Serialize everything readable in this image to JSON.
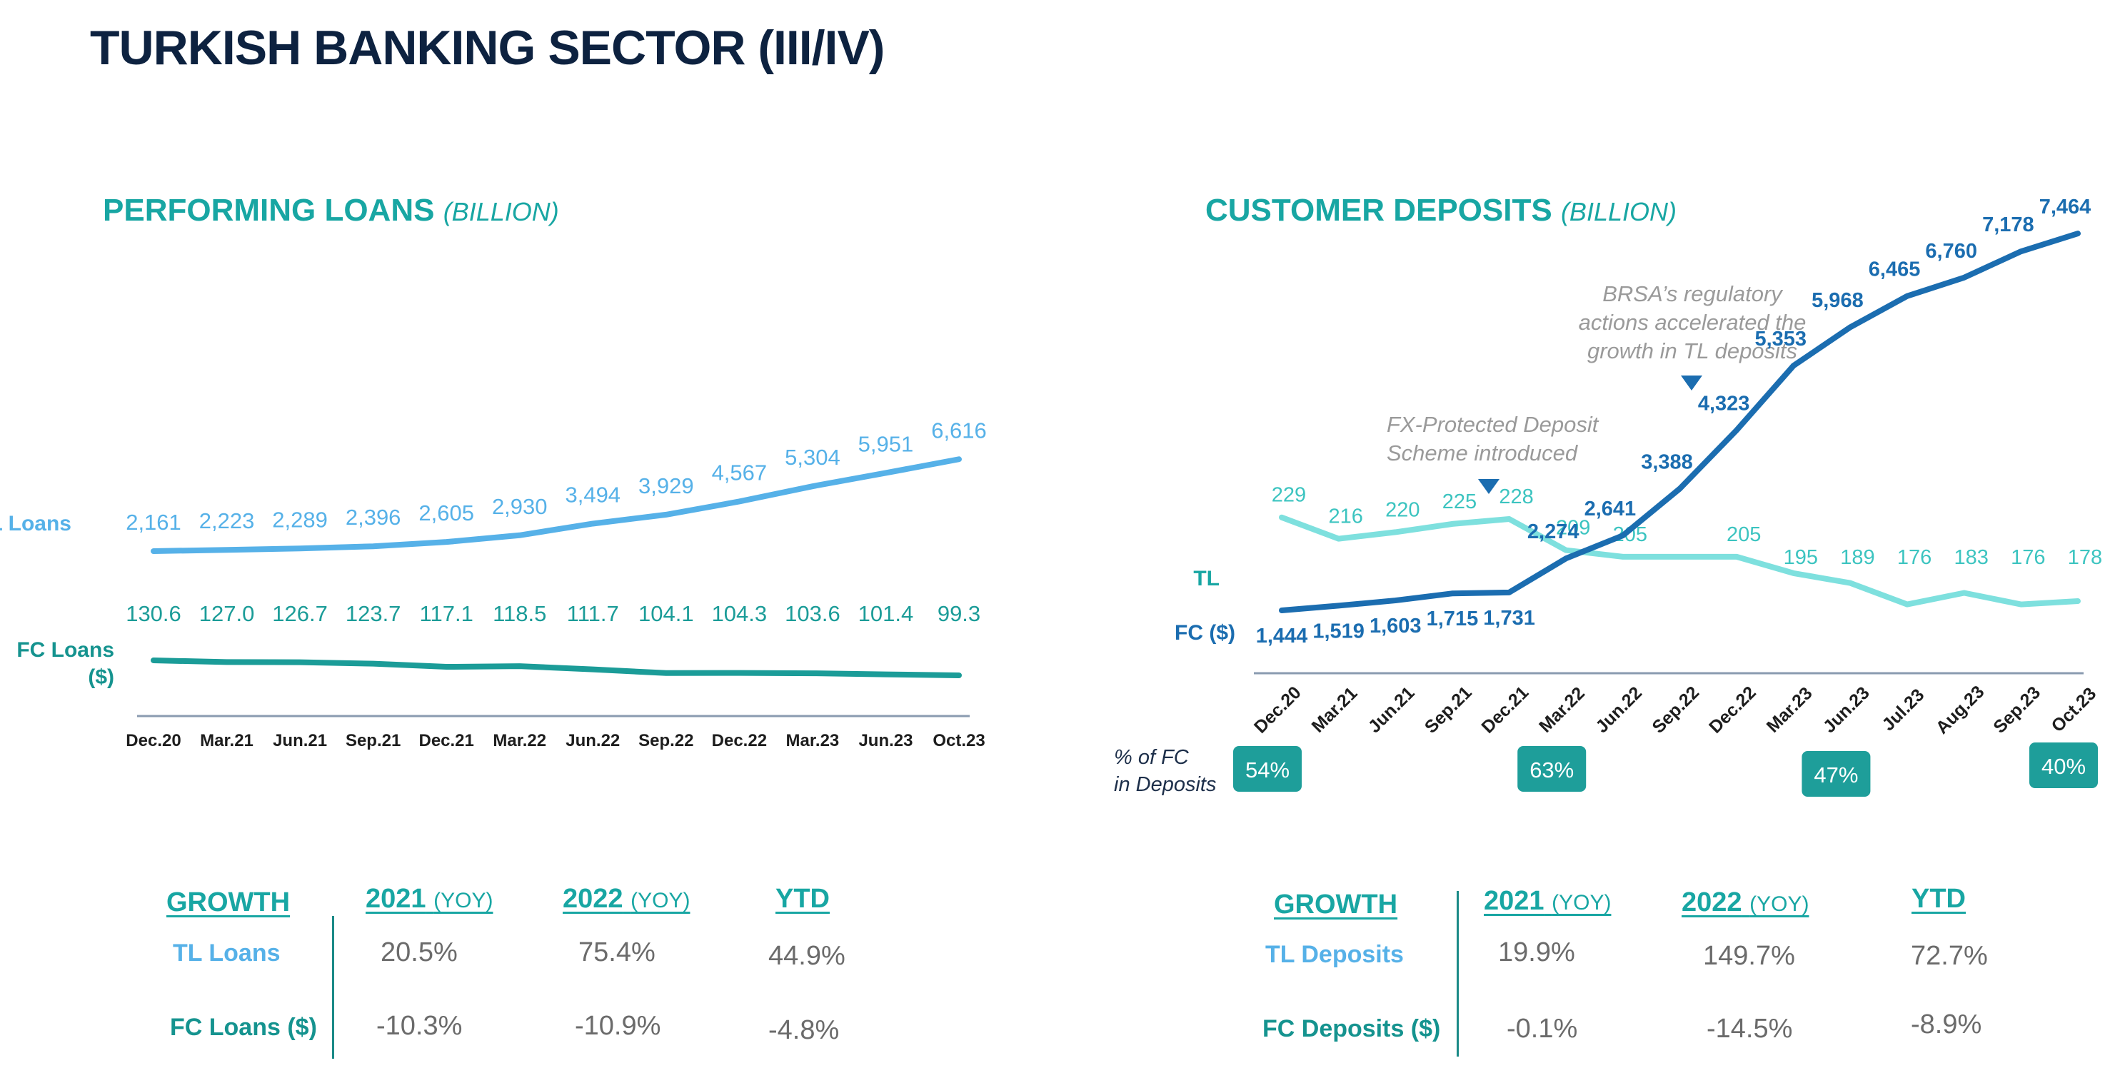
{
  "page_title": "TURKISH BANKING SECTOR (III/IV)",
  "colors": {
    "navy": "#0d2240",
    "teal": "#18a6a3",
    "tl_loans": "#56b1e8",
    "fc_loans": "#1b9c98",
    "tl_deposits": "#1b6db0",
    "fc_deposits": "#7ee0de",
    "annotation": "#9a9a9a"
  },
  "icons": [
    "triangle-marker-icon"
  ],
  "loans": {
    "title": "PERFORMING LOANS",
    "unit": "(BILLION)",
    "series_labels": {
      "tl": "TL Loans",
      "fc_line1": "FC Loans",
      "fc_line2": "($)"
    },
    "growth_table": {
      "header": {
        "label": "GROWTH",
        "c1": "2021",
        "c1_sub": "(YOY)",
        "c2": "2022",
        "c2_sub": "(YOY)",
        "c3": "YTD"
      },
      "rows": [
        {
          "label": "TL Loans",
          "v1": "20.5%",
          "v2": "75.4%",
          "v3": "44.9%"
        },
        {
          "label": "FC Loans ($)",
          "v1": "-10.3%",
          "v2": "-10.9%",
          "v3": "-4.8%"
        }
      ]
    }
  },
  "deposits": {
    "title": "CUSTOMER DEPOSITS",
    "unit": "(BILLION)",
    "series_labels": {
      "tl": "TL",
      "fc": "FC ($)"
    },
    "annotations": [
      {
        "line1": "BRSA’s regulatory",
        "line2": "actions accelerated the",
        "line3": "growth in TL deposits"
      },
      {
        "line1": "FX-Protected Deposit",
        "line2": "Scheme introduced"
      }
    ],
    "fc_share_label": {
      "line1": "% of FC",
      "line2": "in Deposits"
    },
    "fc_share": [
      {
        "category": "Dec.20",
        "value": "54%"
      },
      {
        "category": "Mar.22",
        "value": "63%"
      },
      {
        "category": "Jun.23",
        "value": "47%"
      },
      {
        "category": "Oct.23",
        "value": "40%"
      }
    ],
    "growth_table": {
      "header": {
        "label": "GROWTH",
        "c1": "2021",
        "c1_sub": "(YOY)",
        "c2": "2022",
        "c2_sub": "(YOY)",
        "c3": "YTD"
      },
      "rows": [
        {
          "label": "TL Deposits",
          "v1": "19.9%",
          "v2": "149.7%",
          "v3": "72.7%"
        },
        {
          "label": "FC Deposits ($)",
          "v1": "-0.1%",
          "v2": "-14.5%",
          "v3": "-8.9%"
        }
      ]
    }
  },
  "chart_data": [
    {
      "type": "line",
      "title": "PERFORMING LOANS (BILLION)",
      "tick_labels": [
        "Dec.20",
        "Mar.21",
        "Jun.21",
        "Sep.21",
        "Dec.21",
        "Mar.22",
        "Jun.22",
        "Sep.22",
        "Dec.22",
        "Mar.23",
        "Jun.23",
        "Oct.23"
      ],
      "series": [
        {
          "name": "TL Loans",
          "x": [
            "Dec.20",
            "Mar.21",
            "Jun.21",
            "Sep.21",
            "Dec.21",
            "Mar.22",
            "Jun.22",
            "Sep.22",
            "Dec.22",
            "Mar.23",
            "Jun.23",
            "Oct.23"
          ],
          "values": [
            2161,
            2223,
            2289,
            2396,
            2605,
            2930,
            3494,
            3929,
            4567,
            5304,
            5951,
            6616
          ],
          "labels": [
            "2,161",
            "2,223",
            "2,289",
            "2,396",
            "2,605",
            "2,930",
            "3,494",
            "3,929",
            "4,567",
            "5,304",
            "5,951",
            "6,616"
          ]
        },
        {
          "name": "FC Loans ($)",
          "x": [
            "Dec.20",
            "Mar.21",
            "Jun.21",
            "Sep.21",
            "Dec.21",
            "Mar.22",
            "Jun.22",
            "Sep.22",
            "Dec.22",
            "Mar.23",
            "Jun.23",
            "Oct.23"
          ],
          "values": [
            130.6,
            127.0,
            126.7,
            123.7,
            117.1,
            118.5,
            111.7,
            104.1,
            104.3,
            103.6,
            101.4,
            99.3
          ],
          "labels": [
            "130.6",
            "127.0",
            "126.7",
            "123.7",
            "117.1",
            "118.5",
            "111.7",
            "104.1",
            "104.3",
            "103.6",
            "101.4",
            "99.3"
          ]
        }
      ]
    },
    {
      "type": "line",
      "title": "CUSTOMER DEPOSITS (BILLION)",
      "categories": [
        "Dec.20",
        "Mar.21",
        "Jun.21",
        "Sep.21",
        "Dec.21",
        "Mar.22",
        "Jun.22",
        "Sep.22",
        "Dec.22",
        "Mar.23",
        "Jun.23",
        "Jul.23",
        "Aug.23",
        "Sep.23",
        "Oct.23"
      ],
      "series": [
        {
          "name": "TL",
          "values": [
            1444,
            1519,
            1603,
            1715,
            1731,
            2274,
            2641,
            3388,
            4323,
            5353,
            5968,
            6465,
            6760,
            7178,
            7464
          ],
          "labels": [
            "1,444",
            "1,519",
            "1,603",
            "1,715",
            "1,731",
            "2,274",
            "2,641",
            "3,388",
            "4,323",
            "5,353",
            "5,968",
            "6,465",
            "6,760",
            "7,178",
            "7,464"
          ]
        },
        {
          "name": "FC ($)",
          "values": [
            229,
            216,
            220,
            225,
            228,
            209,
            205,
            205,
            195,
            189,
            176,
            183,
            176,
            178
          ],
          "x": [
            "Dec.20",
            "Mar.21",
            "Jun.21",
            "Sep.21",
            "Dec.21",
            "Mar.22",
            "Jun.22",
            "Dec.22",
            "Mar.23",
            "Jun.23",
            "Jul.23",
            "Aug.23",
            "Sep.23",
            "Oct.23"
          ],
          "labels": [
            "229",
            "216",
            "220",
            "225",
            "228",
            "209",
            "205",
            "205",
            "195",
            "189",
            "176",
            "183",
            "176",
            "178"
          ]
        }
      ]
    }
  ]
}
